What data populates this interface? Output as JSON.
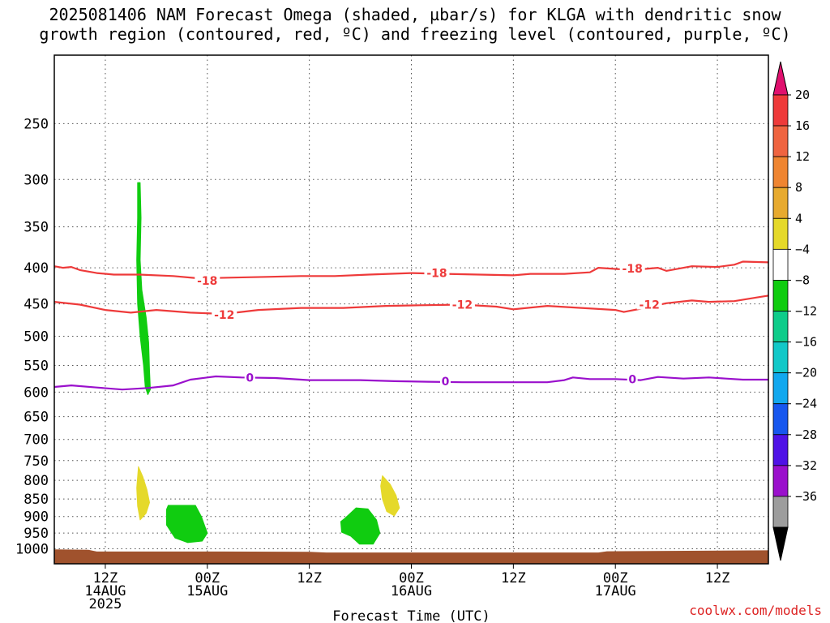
{
  "title_line1": "2025081406 NAM Forecast Omega (shaded, µbar/s) for KLGA with dendritic snow",
  "title_line2": "growth region (contoured, red, ºC) and freezing level (contoured, purple, ºC)",
  "credit": "coolwx.com/models",
  "chart_data": {
    "type": "area",
    "title": "2025081406 NAM Forecast Omega (shaded, µbar/s) for KLGA with dendritic snow growth region (contoured, red, ºC) and freezing level (contoured, purple, ºC)",
    "xlabel": "Forecast Time (UTC)",
    "ylabel": "",
    "x_range_hours": [
      0,
      84
    ],
    "y_scale": "log-pressure",
    "y_range_hPa": [
      1050,
      200
    ],
    "y_ticks": [
      250,
      300,
      350,
      400,
      450,
      500,
      550,
      600,
      650,
      700,
      750,
      800,
      850,
      900,
      950,
      1000
    ],
    "grid": true,
    "x_ticks": [
      {
        "h": 6,
        "lines": [
          "12Z",
          "14AUG",
          "2025"
        ]
      },
      {
        "h": 18,
        "lines": [
          "00Z",
          "15AUG"
        ]
      },
      {
        "h": 30,
        "lines": [
          "12Z"
        ]
      },
      {
        "h": 42,
        "lines": [
          "00Z",
          "16AUG"
        ]
      },
      {
        "h": 54,
        "lines": [
          "12Z"
        ]
      },
      {
        "h": 66,
        "lines": [
          "00Z",
          "17AUG"
        ]
      },
      {
        "h": 78,
        "lines": [
          "12Z"
        ]
      }
    ],
    "contours": [
      {
        "label": "-18",
        "color": "#ee3a3a",
        "points": [
          [
            0,
            398
          ],
          [
            1,
            400
          ],
          [
            2,
            399
          ],
          [
            3,
            403
          ],
          [
            5,
            407
          ],
          [
            7,
            409
          ],
          [
            10,
            409
          ],
          [
            14,
            411
          ],
          [
            17,
            414
          ],
          [
            21,
            413
          ],
          [
            25,
            412
          ],
          [
            29,
            411
          ],
          [
            33,
            411
          ],
          [
            37,
            409
          ],
          [
            42,
            407
          ],
          [
            46,
            408
          ],
          [
            50,
            409
          ],
          [
            54,
            410
          ],
          [
            56,
            408
          ],
          [
            60,
            408
          ],
          [
            63,
            406
          ],
          [
            64,
            400
          ],
          [
            68,
            403
          ],
          [
            71,
            400
          ],
          [
            72,
            404
          ],
          [
            75,
            398
          ],
          [
            78,
            399
          ],
          [
            80,
            396
          ],
          [
            81,
            392
          ],
          [
            84,
            393
          ]
        ],
        "labels": [
          [
            18,
            417
          ],
          [
            45,
            407
          ],
          [
            68,
            401
          ]
        ]
      },
      {
        "label": "-12",
        "color": "#ee3a3a",
        "points": [
          [
            0,
            447
          ],
          [
            3,
            451
          ],
          [
            6,
            459
          ],
          [
            9,
            463
          ],
          [
            12,
            459
          ],
          [
            16,
            463
          ],
          [
            20,
            465
          ],
          [
            24,
            459
          ],
          [
            29,
            456
          ],
          [
            34,
            456
          ],
          [
            39,
            453
          ],
          [
            43,
            452
          ],
          [
            48,
            451
          ],
          [
            52,
            454
          ],
          [
            54,
            458
          ],
          [
            58,
            453
          ],
          [
            62,
            456
          ],
          [
            66,
            459
          ],
          [
            67,
            462
          ],
          [
            69,
            457
          ],
          [
            72,
            449
          ],
          [
            75,
            445
          ],
          [
            77,
            447
          ],
          [
            80,
            446
          ],
          [
            83,
            440
          ],
          [
            84,
            438
          ]
        ],
        "labels": [
          [
            20,
            466
          ],
          [
            48,
            451
          ],
          [
            70,
            451
          ]
        ]
      },
      {
        "label": "0",
        "color": "#9a10cc",
        "points": [
          [
            0,
            590
          ],
          [
            2,
            587
          ],
          [
            5,
            591
          ],
          [
            8,
            595
          ],
          [
            11,
            592
          ],
          [
            14,
            587
          ],
          [
            16,
            576
          ],
          [
            19,
            570
          ],
          [
            22,
            572
          ],
          [
            26,
            573
          ],
          [
            30,
            577
          ],
          [
            36,
            577
          ],
          [
            40,
            579
          ],
          [
            44,
            580
          ],
          [
            48,
            581
          ],
          [
            53,
            581
          ],
          [
            58,
            581
          ],
          [
            60,
            577
          ],
          [
            61,
            572
          ],
          [
            63,
            575
          ],
          [
            66,
            575
          ],
          [
            69,
            577
          ],
          [
            71,
            571
          ],
          [
            74,
            574
          ],
          [
            77,
            572
          ],
          [
            79,
            574
          ],
          [
            81,
            576
          ],
          [
            84,
            576
          ]
        ],
        "labels": [
          [
            23,
            572
          ],
          [
            46,
            579
          ],
          [
            68,
            575
          ]
        ]
      }
    ],
    "shaded_regions": [
      {
        "color": "#10cc10",
        "band": "-8 to -4",
        "points": [
          [
            9.8,
            303
          ],
          [
            10.1,
            303
          ],
          [
            10.2,
            340
          ],
          [
            10.1,
            390
          ],
          [
            10.3,
            430
          ],
          [
            10.8,
            470
          ],
          [
            11.1,
            510
          ],
          [
            11.2,
            560
          ],
          [
            11.3,
            595
          ],
          [
            11.0,
            605
          ],
          [
            10.7,
            590
          ],
          [
            10.5,
            550
          ],
          [
            10.1,
            500
          ],
          [
            9.8,
            450
          ],
          [
            9.7,
            390
          ],
          [
            9.8,
            340
          ]
        ]
      },
      {
        "color": "#e5d92a",
        "band": "4 to 8",
        "points": [
          [
            9.9,
            765
          ],
          [
            10.4,
            790
          ],
          [
            10.9,
            825
          ],
          [
            11.2,
            860
          ],
          [
            10.8,
            890
          ],
          [
            10.1,
            910
          ],
          [
            9.8,
            870
          ],
          [
            9.7,
            820
          ]
        ]
      },
      {
        "color": "#10cc10",
        "band": "-8 to -4",
        "points": [
          [
            13.4,
            868
          ],
          [
            16.6,
            868
          ],
          [
            17.3,
            900
          ],
          [
            18.0,
            950
          ],
          [
            17.4,
            975
          ],
          [
            15.7,
            980
          ],
          [
            14.2,
            965
          ],
          [
            13.2,
            925
          ],
          [
            13.2,
            880
          ]
        ]
      },
      {
        "color": "#10cc10",
        "band": "-8 to -4",
        "points": [
          [
            35.5,
            875
          ],
          [
            36.9,
            878
          ],
          [
            37.9,
            910
          ],
          [
            38.3,
            950
          ],
          [
            37.5,
            985
          ],
          [
            35.9,
            985
          ],
          [
            34.9,
            960
          ],
          [
            33.8,
            947
          ],
          [
            33.7,
            915
          ],
          [
            34.2,
            905
          ]
        ]
      },
      {
        "color": "#e5d92a",
        "band": "4 to 8",
        "points": [
          [
            38.6,
            788
          ],
          [
            39.5,
            810
          ],
          [
            40.2,
            840
          ],
          [
            40.6,
            875
          ],
          [
            40.0,
            898
          ],
          [
            39.1,
            885
          ],
          [
            38.6,
            850
          ],
          [
            38.4,
            815
          ]
        ]
      }
    ],
    "terrain": {
      "color": "#a0522d",
      "top_points": [
        [
          0,
          1002
        ],
        [
          4,
          1003
        ],
        [
          5,
          1009
        ],
        [
          20,
          1009
        ],
        [
          30,
          1010
        ],
        [
          32,
          1012
        ],
        [
          64,
          1012
        ],
        [
          65,
          1008
        ],
        [
          84,
          1005
        ]
      ]
    },
    "colorbar": {
      "labels": [
        "20",
        "16",
        "12",
        "8",
        "4",
        "-4",
        "-8",
        "-12",
        "-16",
        "-20",
        "-24",
        "-28",
        "-32",
        "-36"
      ],
      "colors": [
        "#ee3a3a",
        "#ef6440",
        "#ef8531",
        "#e7aa2f",
        "#e5d92a",
        "#ffffff",
        "#10cc10",
        "#0fcc8a",
        "#12c8c8",
        "#12a8ee",
        "#1757ee",
        "#4f12e6",
        "#9a10cc",
        "#9d9d9d"
      ],
      "top_arrow_color": "#e0106e",
      "bottom_arrow_color": "#000000"
    }
  }
}
